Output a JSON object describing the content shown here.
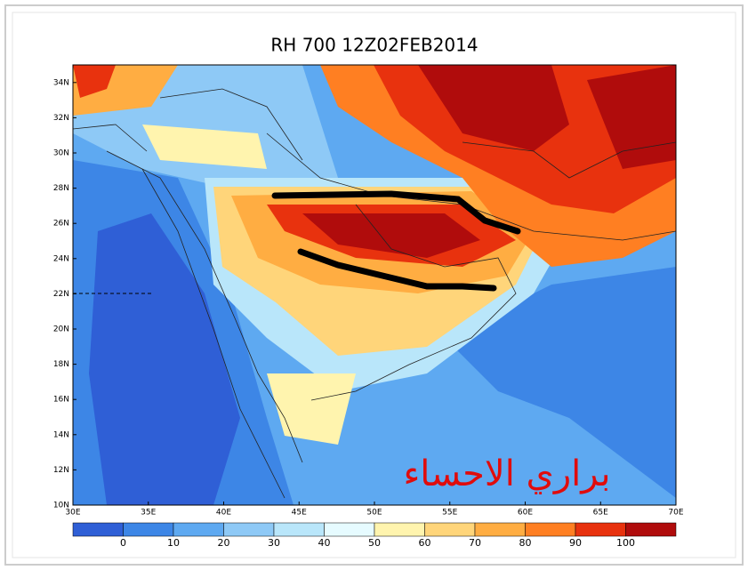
{
  "title": "RH 700  12Z02FEB2014",
  "lat_labels": [
    "34N",
    "32N",
    "30N",
    "28N",
    "26N",
    "24N",
    "22N",
    "20N",
    "18N",
    "16N",
    "14N",
    "12N",
    "10N"
  ],
  "lon_labels": [
    "30E",
    "35E",
    "40E",
    "45E",
    "50E",
    "55E",
    "60E",
    "65E",
    "70E"
  ],
  "colorbar": {
    "labels": [
      0,
      10,
      20,
      30,
      40,
      50,
      60,
      70,
      80,
      90,
      100
    ],
    "colors": [
      "#2f5fd6",
      "#3d86e6",
      "#5ea9f1",
      "#8ec9f6",
      "#b9e6fa",
      "#e6fbff",
      "#fff4ae",
      "#ffd57a",
      "#ffad42",
      "#ff7f22",
      "#e8320e",
      "#b00c0c"
    ]
  },
  "watermark": "براري الاحساء"
}
